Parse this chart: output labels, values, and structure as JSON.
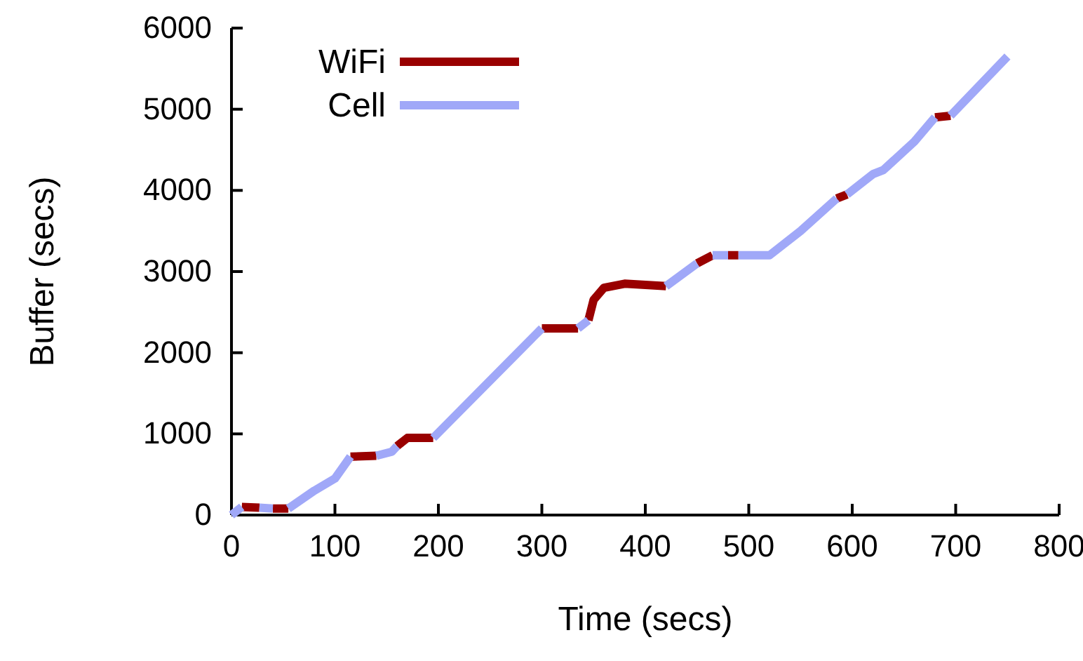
{
  "chart_data": {
    "type": "line",
    "xlabel": "Time (secs)",
    "ylabel": "Buffer (secs)",
    "xlim": [
      0,
      800
    ],
    "xticks": [
      0,
      100,
      200,
      300,
      400,
      500,
      600,
      700,
      800
    ],
    "ylim": [
      0,
      6000
    ],
    "yticks": [
      0,
      1000,
      2000,
      3000,
      4000,
      5000,
      6000
    ],
    "grid": false,
    "legend": "top left",
    "marker": "none",
    "line_style": "solid",
    "series": [
      {
        "name": "WiFi",
        "color": "#990000",
        "x": [
          10,
          27,
          32,
          40,
          55,
          57,
          115,
          140,
          142,
          160,
          170,
          195,
          197,
          300,
          335,
          337,
          345,
          350,
          360,
          380,
          420,
          422,
          450,
          465,
          472,
          480,
          490,
          492,
          585,
          595,
          597,
          680,
          695
        ],
        "values": [
          100,
          90,
          null,
          80,
          80,
          null,
          720,
          730,
          null,
          850,
          950,
          950,
          null,
          2300,
          2300,
          null,
          2400,
          2650,
          2800,
          2850,
          2820,
          null,
          3100,
          3200,
          null,
          3200,
          3200,
          null,
          3900,
          3950,
          null,
          4900,
          4920
        ]
      },
      {
        "name": "Cell",
        "color": "#a0a8f8",
        "x": [
          0,
          10,
          12,
          27,
          40,
          42,
          55,
          80,
          100,
          115,
          117,
          140,
          155,
          160,
          162,
          195,
          300,
          302,
          335,
          345,
          347,
          420,
          450,
          452,
          465,
          480,
          482,
          490,
          520,
          550,
          585,
          587,
          595,
          620,
          630,
          660,
          680,
          682,
          695,
          750
        ],
        "values": [
          0,
          100,
          null,
          90,
          80,
          null,
          80,
          300,
          450,
          720,
          null,
          730,
          780,
          850,
          null,
          950,
          2300,
          null,
          2300,
          2400,
          null,
          2820,
          3100,
          null,
          3200,
          3200,
          null,
          3200,
          3200,
          3500,
          3900,
          null,
          3950,
          4200,
          4250,
          4600,
          4900,
          null,
          4920,
          5650
        ]
      }
    ]
  }
}
